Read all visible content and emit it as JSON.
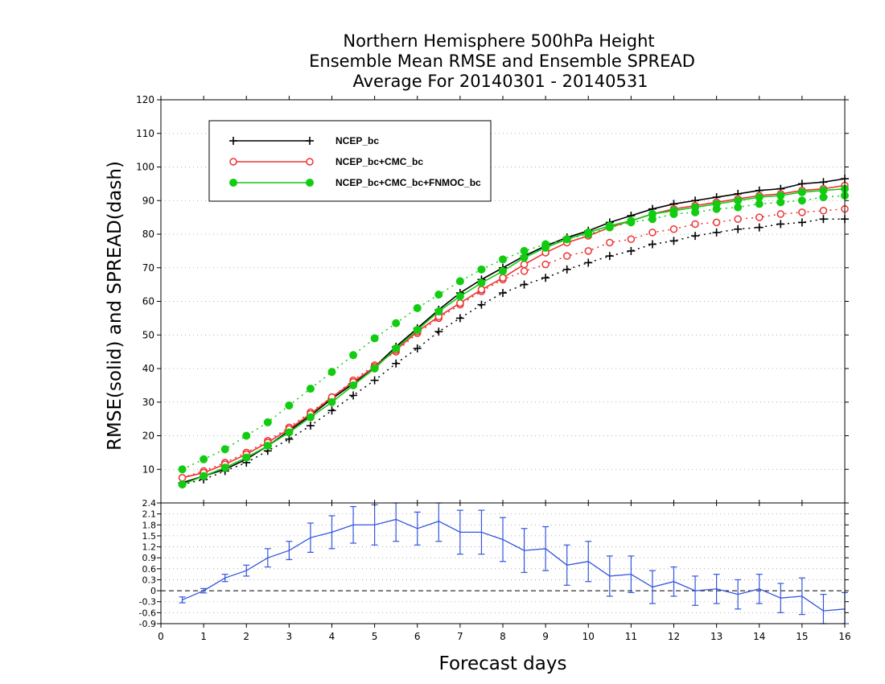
{
  "chart_data": [
    {
      "type": "line",
      "title_lines": [
        "Northern Hemisphere 500hPa Height",
        "Ensemble Mean RMSE and Ensemble SPREAD",
        "Average For 20140301 - 20140531"
      ],
      "xlabel": "Forecast days",
      "ylabel": "RMSE(solid) and SPREAD(dash)",
      "xlim": [
        0,
        16
      ],
      "ylim": [
        0,
        120
      ],
      "x_ticks": [
        "0",
        "1",
        "2",
        "3",
        "4",
        "5",
        "6",
        "7",
        "8",
        "9",
        "10",
        "11",
        "12",
        "13",
        "14",
        "15",
        "16"
      ],
      "y_ticks": [
        "10",
        "20",
        "30",
        "40",
        "50",
        "60",
        "70",
        "80",
        "90",
        "100",
        "110",
        "120"
      ],
      "grid": true,
      "legend_position": "top-left",
      "x": [
        0.5,
        1,
        1.5,
        2,
        2.5,
        3,
        3.5,
        4,
        4.5,
        5,
        5.5,
        6,
        6.5,
        7,
        7.5,
        8,
        8.5,
        9,
        9.5,
        10,
        10.5,
        11,
        11.5,
        12,
        12.5,
        13,
        13.5,
        14,
        14.5,
        15,
        15.5,
        16
      ],
      "series": [
        {
          "name": "NCEP_bc",
          "color": "#000000",
          "marker": "plus",
          "rmse": [
            6.0,
            8.0,
            10.0,
            13.0,
            17.0,
            21.5,
            26.0,
            31.0,
            35.5,
            40.5,
            46.5,
            52.0,
            57.5,
            62.5,
            66.5,
            70.0,
            73.5,
            76.5,
            79.0,
            81.0,
            83.5,
            85.5,
            87.5,
            89.0,
            90.0,
            91.0,
            92.0,
            93.0,
            93.5,
            95.0,
            95.5,
            96.5
          ],
          "spread": [
            5.5,
            7.0,
            9.5,
            12.0,
            15.5,
            19.0,
            23.0,
            27.5,
            32.0,
            36.5,
            41.5,
            46.0,
            51.0,
            55.0,
            59.0,
            62.5,
            65.0,
            67.0,
            69.5,
            71.5,
            73.5,
            75.0,
            77.0,
            78.0,
            79.5,
            80.5,
            81.5,
            82.0,
            83.0,
            83.5,
            84.5,
            84.5
          ]
        },
        {
          "name": "NCEP_bc+CMC_bc",
          "color": "#ee3333",
          "marker": "circle-open",
          "rmse": [
            7.5,
            9.0,
            11.5,
            14.5,
            18.0,
            22.0,
            26.5,
            31.5,
            36.0,
            40.5,
            45.5,
            51.0,
            55.5,
            59.5,
            63.5,
            67.0,
            71.0,
            74.5,
            77.5,
            79.5,
            82.0,
            84.0,
            86.0,
            87.5,
            88.5,
            89.5,
            90.5,
            91.5,
            92.0,
            93.0,
            93.5,
            94.5
          ],
          "spread": [
            7.5,
            9.5,
            12.0,
            15.0,
            18.5,
            22.5,
            27.0,
            31.5,
            36.5,
            41.0,
            45.0,
            50.5,
            55.0,
            59.0,
            63.0,
            66.5,
            69.0,
            71.0,
            73.5,
            75.0,
            77.5,
            78.5,
            80.5,
            81.5,
            83.0,
            83.5,
            84.5,
            85.0,
            86.0,
            86.5,
            87.0,
            87.5
          ]
        },
        {
          "name": "NCEP_bc+CMC_bc+FNMOC_bc",
          "color": "#11cc11",
          "marker": "circle-filled",
          "rmse": [
            5.5,
            8.0,
            10.5,
            13.5,
            17.0,
            21.0,
            25.5,
            30.0,
            35.0,
            40.0,
            46.0,
            51.5,
            57.0,
            61.5,
            65.5,
            69.0,
            73.0,
            76.0,
            78.5,
            80.5,
            82.5,
            84.0,
            86.0,
            87.0,
            88.0,
            89.0,
            90.0,
            91.0,
            91.5,
            92.5,
            93.0,
            93.5
          ],
          "spread": [
            10.0,
            13.0,
            16.0,
            20.0,
            24.0,
            29.0,
            34.0,
            39.0,
            44.0,
            49.0,
            53.5,
            58.0,
            62.0,
            66.0,
            69.5,
            72.5,
            75.0,
            77.0,
            78.5,
            80.0,
            82.0,
            83.5,
            84.5,
            86.0,
            86.5,
            87.5,
            88.0,
            89.0,
            89.5,
            90.0,
            91.0,
            91.5
          ]
        }
      ]
    },
    {
      "type": "line",
      "xlim": [
        0,
        16
      ],
      "ylim": [
        -0.9,
        2.4
      ],
      "y_ticks": [
        "-0.9",
        "-0.6",
        "-0.3",
        "0",
        "0.3",
        "0.6",
        "0.9",
        "1.2",
        "1.5",
        "1.8",
        "2.1",
        "2.4"
      ],
      "zero_line": "dashed",
      "color": "#3355dd",
      "x": [
        0.5,
        1,
        1.5,
        2,
        2.5,
        3,
        3.5,
        4,
        4.5,
        5,
        5.5,
        6,
        6.5,
        7,
        7.5,
        8,
        8.5,
        9,
        9.5,
        10,
        10.5,
        11,
        11.5,
        12,
        12.5,
        13,
        13.5,
        14,
        14.5,
        15,
        15.5,
        16
      ],
      "values": [
        -0.25,
        0.0,
        0.35,
        0.55,
        0.9,
        1.1,
        1.45,
        1.6,
        1.8,
        1.8,
        1.95,
        1.7,
        1.9,
        1.6,
        1.6,
        1.4,
        1.1,
        1.15,
        0.7,
        0.8,
        0.4,
        0.45,
        0.1,
        0.25,
        0.0,
        0.05,
        -0.1,
        0.05,
        -0.2,
        -0.15,
        -0.55,
        -0.5
      ],
      "error": [
        0.08,
        0.06,
        0.1,
        0.15,
        0.25,
        0.25,
        0.4,
        0.45,
        0.5,
        0.55,
        0.6,
        0.45,
        0.55,
        0.6,
        0.6,
        0.6,
        0.6,
        0.6,
        0.55,
        0.55,
        0.55,
        0.5,
        0.45,
        0.4,
        0.4,
        0.4,
        0.4,
        0.4,
        0.4,
        0.5,
        0.45,
        0.45
      ]
    }
  ]
}
